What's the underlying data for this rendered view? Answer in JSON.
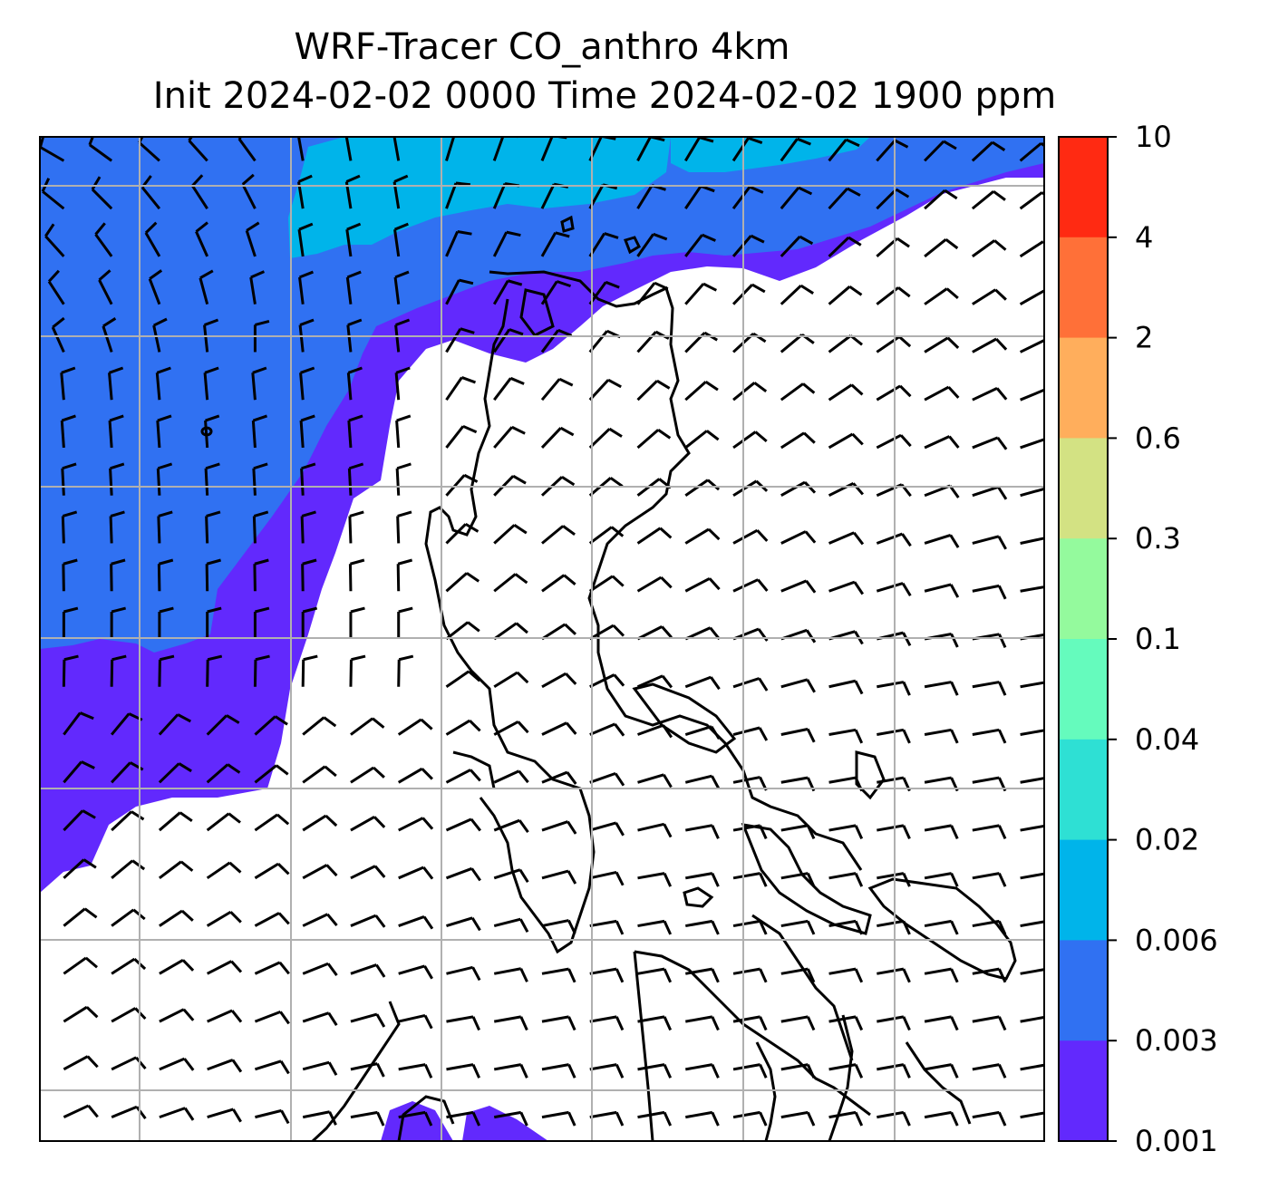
{
  "title": {
    "line1": "WRF-Tracer CO_anthro 4km",
    "line2": "Init 2024-02-02 0000 Time 2024-02-02 1900 ppm"
  },
  "map": {
    "field": "CO_anthro",
    "units": "ppm",
    "overlay": "wind-barbs",
    "gridlines": true,
    "coastlines": true
  },
  "colorbar": {
    "ticks": [
      "10",
      "4",
      "2",
      "0.6",
      "0.3",
      "0.1",
      "0.04",
      "0.02",
      "0.006",
      "0.003",
      "0.001"
    ],
    "colors": [
      "#ff2a12",
      "#ff7038",
      "#ffae5c",
      "#d3e283",
      "#94fa9d",
      "#65fbbd",
      "#2ee0d4",
      "#00b4ea",
      "#3071f2",
      "#6229fd"
    ]
  },
  "legend_colors": {
    "bin_0_001_0_003": "#6229fd",
    "bin_0_003_0_006": "#3071f2",
    "bin_0_006_0_02": "#00b4ea",
    "below_min": "#ffffff"
  }
}
